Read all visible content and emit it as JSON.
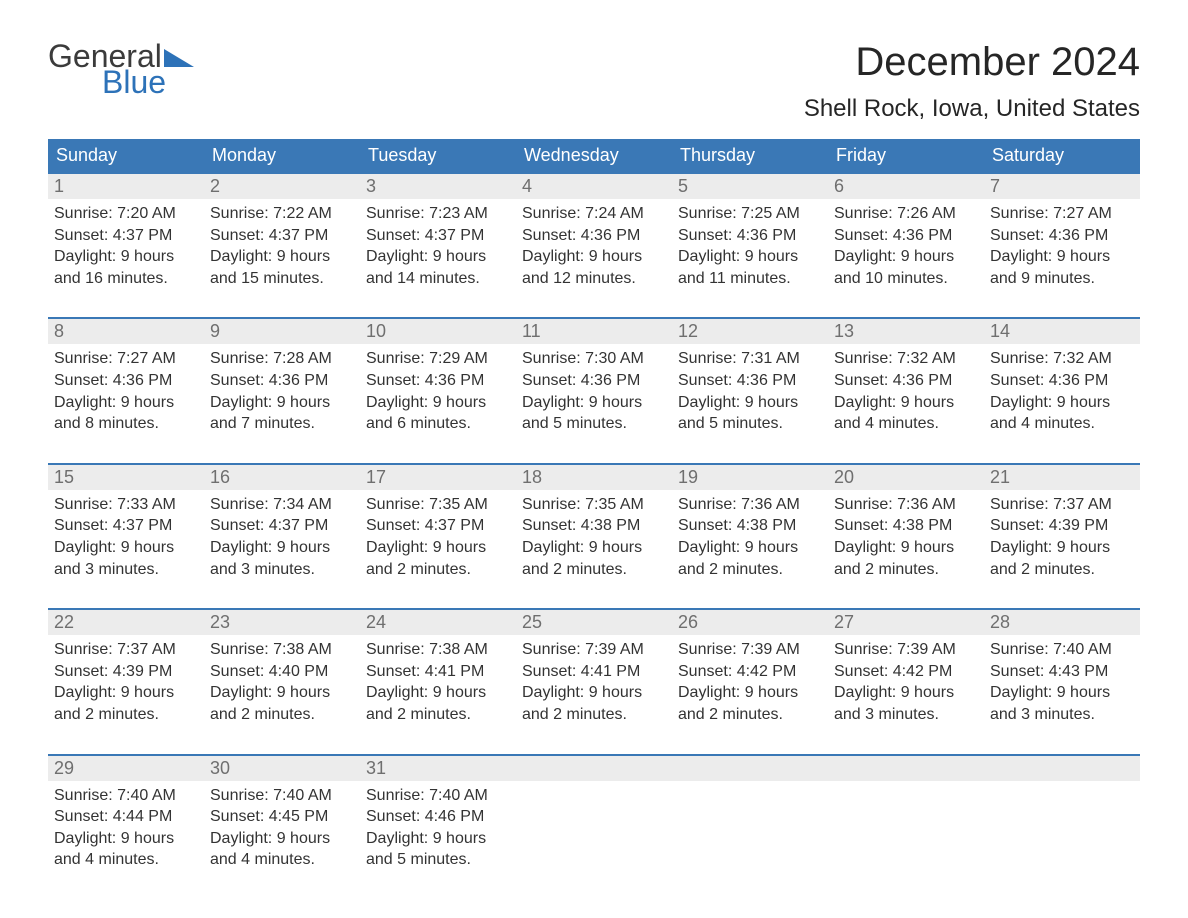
{
  "logo": {
    "text1": "General",
    "text2": "Blue",
    "tri_color": "#2d72b8"
  },
  "header": {
    "month_title": "December 2024",
    "location": "Shell Rock, Iowa, United States",
    "title_color": "#262626",
    "title_fontsize": 40,
    "location_fontsize": 24
  },
  "colors": {
    "header_bg": "#3a78b6",
    "header_text": "#ffffff",
    "daynum_bg": "#ececec",
    "daynum_text": "#6f6f6f",
    "body_text": "#333333",
    "rule": "#3a78b6",
    "page_bg": "#ffffff"
  },
  "weekdays": [
    "Sunday",
    "Monday",
    "Tuesday",
    "Wednesday",
    "Thursday",
    "Friday",
    "Saturday"
  ],
  "weeks": [
    [
      {
        "n": "1",
        "sr": "Sunrise: 7:20 AM",
        "ss": "Sunset: 4:37 PM",
        "d1": "Daylight: 9 hours",
        "d2": "and 16 minutes."
      },
      {
        "n": "2",
        "sr": "Sunrise: 7:22 AM",
        "ss": "Sunset: 4:37 PM",
        "d1": "Daylight: 9 hours",
        "d2": "and 15 minutes."
      },
      {
        "n": "3",
        "sr": "Sunrise: 7:23 AM",
        "ss": "Sunset: 4:37 PM",
        "d1": "Daylight: 9 hours",
        "d2": "and 14 minutes."
      },
      {
        "n": "4",
        "sr": "Sunrise: 7:24 AM",
        "ss": "Sunset: 4:36 PM",
        "d1": "Daylight: 9 hours",
        "d2": "and 12 minutes."
      },
      {
        "n": "5",
        "sr": "Sunrise: 7:25 AM",
        "ss": "Sunset: 4:36 PM",
        "d1": "Daylight: 9 hours",
        "d2": "and 11 minutes."
      },
      {
        "n": "6",
        "sr": "Sunrise: 7:26 AM",
        "ss": "Sunset: 4:36 PM",
        "d1": "Daylight: 9 hours",
        "d2": "and 10 minutes."
      },
      {
        "n": "7",
        "sr": "Sunrise: 7:27 AM",
        "ss": "Sunset: 4:36 PM",
        "d1": "Daylight: 9 hours",
        "d2": "and 9 minutes."
      }
    ],
    [
      {
        "n": "8",
        "sr": "Sunrise: 7:27 AM",
        "ss": "Sunset: 4:36 PM",
        "d1": "Daylight: 9 hours",
        "d2": "and 8 minutes."
      },
      {
        "n": "9",
        "sr": "Sunrise: 7:28 AM",
        "ss": "Sunset: 4:36 PM",
        "d1": "Daylight: 9 hours",
        "d2": "and 7 minutes."
      },
      {
        "n": "10",
        "sr": "Sunrise: 7:29 AM",
        "ss": "Sunset: 4:36 PM",
        "d1": "Daylight: 9 hours",
        "d2": "and 6 minutes."
      },
      {
        "n": "11",
        "sr": "Sunrise: 7:30 AM",
        "ss": "Sunset: 4:36 PM",
        "d1": "Daylight: 9 hours",
        "d2": "and 5 minutes."
      },
      {
        "n": "12",
        "sr": "Sunrise: 7:31 AM",
        "ss": "Sunset: 4:36 PM",
        "d1": "Daylight: 9 hours",
        "d2": "and 5 minutes."
      },
      {
        "n": "13",
        "sr": "Sunrise: 7:32 AM",
        "ss": "Sunset: 4:36 PM",
        "d1": "Daylight: 9 hours",
        "d2": "and 4 minutes."
      },
      {
        "n": "14",
        "sr": "Sunrise: 7:32 AM",
        "ss": "Sunset: 4:36 PM",
        "d1": "Daylight: 9 hours",
        "d2": "and 4 minutes."
      }
    ],
    [
      {
        "n": "15",
        "sr": "Sunrise: 7:33 AM",
        "ss": "Sunset: 4:37 PM",
        "d1": "Daylight: 9 hours",
        "d2": "and 3 minutes."
      },
      {
        "n": "16",
        "sr": "Sunrise: 7:34 AM",
        "ss": "Sunset: 4:37 PM",
        "d1": "Daylight: 9 hours",
        "d2": "and 3 minutes."
      },
      {
        "n": "17",
        "sr": "Sunrise: 7:35 AM",
        "ss": "Sunset: 4:37 PM",
        "d1": "Daylight: 9 hours",
        "d2": "and 2 minutes."
      },
      {
        "n": "18",
        "sr": "Sunrise: 7:35 AM",
        "ss": "Sunset: 4:38 PM",
        "d1": "Daylight: 9 hours",
        "d2": "and 2 minutes."
      },
      {
        "n": "19",
        "sr": "Sunrise: 7:36 AM",
        "ss": "Sunset: 4:38 PM",
        "d1": "Daylight: 9 hours",
        "d2": "and 2 minutes."
      },
      {
        "n": "20",
        "sr": "Sunrise: 7:36 AM",
        "ss": "Sunset: 4:38 PM",
        "d1": "Daylight: 9 hours",
        "d2": "and 2 minutes."
      },
      {
        "n": "21",
        "sr": "Sunrise: 7:37 AM",
        "ss": "Sunset: 4:39 PM",
        "d1": "Daylight: 9 hours",
        "d2": "and 2 minutes."
      }
    ],
    [
      {
        "n": "22",
        "sr": "Sunrise: 7:37 AM",
        "ss": "Sunset: 4:39 PM",
        "d1": "Daylight: 9 hours",
        "d2": "and 2 minutes."
      },
      {
        "n": "23",
        "sr": "Sunrise: 7:38 AM",
        "ss": "Sunset: 4:40 PM",
        "d1": "Daylight: 9 hours",
        "d2": "and 2 minutes."
      },
      {
        "n": "24",
        "sr": "Sunrise: 7:38 AM",
        "ss": "Sunset: 4:41 PM",
        "d1": "Daylight: 9 hours",
        "d2": "and 2 minutes."
      },
      {
        "n": "25",
        "sr": "Sunrise: 7:39 AM",
        "ss": "Sunset: 4:41 PM",
        "d1": "Daylight: 9 hours",
        "d2": "and 2 minutes."
      },
      {
        "n": "26",
        "sr": "Sunrise: 7:39 AM",
        "ss": "Sunset: 4:42 PM",
        "d1": "Daylight: 9 hours",
        "d2": "and 2 minutes."
      },
      {
        "n": "27",
        "sr": "Sunrise: 7:39 AM",
        "ss": "Sunset: 4:42 PM",
        "d1": "Daylight: 9 hours",
        "d2": "and 3 minutes."
      },
      {
        "n": "28",
        "sr": "Sunrise: 7:40 AM",
        "ss": "Sunset: 4:43 PM",
        "d1": "Daylight: 9 hours",
        "d2": "and 3 minutes."
      }
    ],
    [
      {
        "n": "29",
        "sr": "Sunrise: 7:40 AM",
        "ss": "Sunset: 4:44 PM",
        "d1": "Daylight: 9 hours",
        "d2": "and 4 minutes."
      },
      {
        "n": "30",
        "sr": "Sunrise: 7:40 AM",
        "ss": "Sunset: 4:45 PM",
        "d1": "Daylight: 9 hours",
        "d2": "and 4 minutes."
      },
      {
        "n": "31",
        "sr": "Sunrise: 7:40 AM",
        "ss": "Sunset: 4:46 PM",
        "d1": "Daylight: 9 hours",
        "d2": "and 5 minutes."
      },
      {
        "n": "",
        "sr": "",
        "ss": "",
        "d1": "",
        "d2": ""
      },
      {
        "n": "",
        "sr": "",
        "ss": "",
        "d1": "",
        "d2": ""
      },
      {
        "n": "",
        "sr": "",
        "ss": "",
        "d1": "",
        "d2": ""
      },
      {
        "n": "",
        "sr": "",
        "ss": "",
        "d1": "",
        "d2": ""
      }
    ]
  ]
}
